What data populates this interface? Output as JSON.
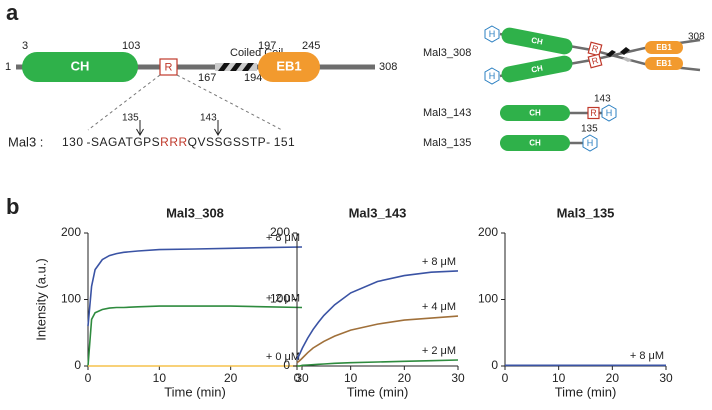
{
  "diagram": {
    "label": "a",
    "residues": [
      1,
      3,
      103,
      167,
      194,
      197,
      245,
      308
    ],
    "domains": {
      "ch": "CH",
      "r": "R",
      "coiled": "Coiled Coil",
      "eb1": "EB1",
      "tag": "H"
    },
    "sequence": {
      "name": "Mal3 :",
      "start": 130,
      "prefix": "-SAGATGPS",
      "highlight": "RRR",
      "suffix": "QVSSGSSTP-",
      "end": 151,
      "markers": [
        135,
        143
      ]
    },
    "constructs": [
      {
        "name": "Mal3_308",
        "end": 308
      },
      {
        "name": "Mal3_143",
        "end": 143
      },
      {
        "name": "Mal3_135",
        "end": 135
      }
    ]
  },
  "panel_b_label": "b",
  "chart_data": [
    {
      "type": "line",
      "title": "Mal3_308",
      "xlabel": "Time (min)",
      "ylabel": "Intensity (a.u.)",
      "x": [
        0,
        0.5,
        1,
        2,
        3,
        4,
        5,
        7,
        10,
        15,
        20,
        25,
        30
      ],
      "xlim": [
        0,
        30
      ],
      "ylim": [
        0,
        200
      ],
      "xticks": [
        0,
        10,
        20,
        30
      ],
      "yticks": [
        0,
        100,
        200
      ],
      "series": [
        {
          "name": "+ 8 μM",
          "color": "#3a53a4",
          "values": [
            60,
            120,
            145,
            160,
            166,
            169,
            171,
            173,
            175,
            176,
            177,
            178,
            179
          ]
        },
        {
          "name": "+ 2 μM",
          "color": "#2e8b3e",
          "values": [
            0,
            70,
            80,
            85,
            87,
            88,
            88,
            89,
            90,
            90,
            90,
            89,
            88
          ]
        },
        {
          "name": "+ 0 μM",
          "color": "#f5c24c",
          "values": [
            0,
            0,
            0,
            0,
            0,
            0,
            0,
            0,
            0,
            0,
            0,
            0,
            0
          ]
        }
      ]
    },
    {
      "type": "line",
      "title": "Mal3_143",
      "xlabel": "Time (min)",
      "x": [
        0,
        0.5,
        1,
        2,
        3,
        4,
        5,
        7,
        10,
        15,
        20,
        25,
        30
      ],
      "xlim": [
        0,
        30
      ],
      "ylim": [
        0,
        200
      ],
      "xticks": [
        0,
        10,
        20,
        30
      ],
      "yticks": [
        0,
        100,
        200
      ],
      "series": [
        {
          "name": "+ 8 μM",
          "color": "#3a53a4",
          "values": [
            10,
            18,
            27,
            42,
            55,
            66,
            76,
            92,
            110,
            127,
            136,
            141,
            143
          ]
        },
        {
          "name": "+ 4 μM",
          "color": "#a0703a",
          "values": [
            5,
            8,
            12,
            20,
            27,
            32,
            37,
            45,
            54,
            63,
            69,
            72,
            75
          ]
        },
        {
          "name": "+ 2 μM",
          "color": "#2e8b3e",
          "values": [
            0,
            0,
            1,
            1.5,
            2,
            2.5,
            3,
            4,
            5,
            6,
            7,
            8,
            9
          ]
        }
      ]
    },
    {
      "type": "line",
      "title": "Mal3_135",
      "xlabel": "Time (min)",
      "x": [
        0,
        0.5,
        1,
        2,
        3,
        4,
        5,
        7,
        10,
        15,
        20,
        25,
        30
      ],
      "xlim": [
        0,
        30
      ],
      "ylim": [
        0,
        200
      ],
      "xticks": [
        0,
        10,
        20,
        30
      ],
      "yticks": [
        0,
        100,
        200
      ],
      "series": [
        {
          "name": "+ 8 μM",
          "color": "#3a53a4",
          "values": [
            1,
            1,
            1,
            1,
            1,
            1,
            1,
            1,
            1,
            1,
            1,
            1,
            1
          ]
        }
      ]
    }
  ]
}
